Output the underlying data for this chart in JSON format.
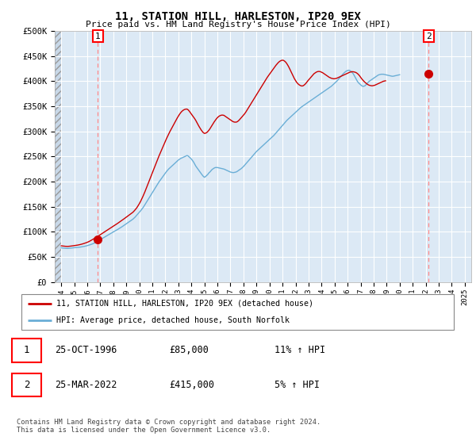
{
  "title": "11, STATION HILL, HARLESTON, IP20 9EX",
  "subtitle": "Price paid vs. HM Land Registry's House Price Index (HPI)",
  "ylim": [
    0,
    500000
  ],
  "yticks": [
    0,
    50000,
    100000,
    150000,
    200000,
    250000,
    300000,
    350000,
    400000,
    450000,
    500000
  ],
  "ytick_labels": [
    "£0",
    "£50K",
    "£100K",
    "£150K",
    "£200K",
    "£250K",
    "£300K",
    "£350K",
    "£400K",
    "£450K",
    "£500K"
  ],
  "background_color": "#ffffff",
  "plot_bg_color": "#dce9f5",
  "grid_color": "#ffffff",
  "transaction1": {
    "label": "1",
    "date": "25-OCT-1996",
    "price": 85000,
    "hpi_pct": "11%",
    "x_year": 1996.82
  },
  "transaction2": {
    "label": "2",
    "date": "25-MAR-2022",
    "price": 415000,
    "hpi_pct": "5%",
    "x_year": 2022.23
  },
  "hpi_line_color": "#6aaed6",
  "price_line_color": "#cc0000",
  "marker_color": "#cc0000",
  "vline_color": "#ff8888",
  "legend_label1": "11, STATION HILL, HARLESTON, IP20 9EX (detached house)",
  "legend_label2": "HPI: Average price, detached house, South Norfolk",
  "footer": "Contains HM Land Registry data © Crown copyright and database right 2024.\nThis data is licensed under the Open Government Licence v3.0.",
  "table_row1": [
    "1",
    "25-OCT-1996",
    "£85,000",
    "11% ↑ HPI"
  ],
  "table_row2": [
    "2",
    "25-MAR-2022",
    "£415,000",
    "5% ↑ HPI"
  ],
  "xtick_years": [
    1994,
    1995,
    1996,
    1997,
    1998,
    1999,
    2000,
    2001,
    2002,
    2003,
    2004,
    2005,
    2006,
    2007,
    2008,
    2009,
    2010,
    2011,
    2012,
    2013,
    2014,
    2015,
    2016,
    2017,
    2018,
    2019,
    2020,
    2021,
    2022,
    2023,
    2024,
    2025
  ],
  "hpi_monthly": [
    68000,
    67800,
    67500,
    67200,
    67000,
    66900,
    66800,
    67000,
    67200,
    67500,
    67800,
    68000,
    68200,
    68400,
    68600,
    68800,
    69000,
    69300,
    69600,
    70000,
    70400,
    70800,
    71300,
    71800,
    72400,
    73000,
    73700,
    74400,
    75200,
    76000,
    77000,
    78000,
    79200,
    80400,
    81700,
    83000,
    84300,
    85600,
    86900,
    88200,
    89500,
    90800,
    92100,
    93400,
    94700,
    96000,
    97200,
    98400,
    99600,
    100800,
    102000,
    103300,
    104600,
    105900,
    107200,
    108500,
    110000,
    111500,
    113000,
    114500,
    116000,
    117500,
    119000,
    120500,
    122000,
    123500,
    125000,
    127000,
    129000,
    131500,
    134000,
    136500,
    139000,
    141500,
    144000,
    147000,
    150000,
    153500,
    157000,
    160500,
    164000,
    167500,
    171000,
    174500,
    178000,
    181500,
    185000,
    188500,
    192000,
    195500,
    199000,
    202000,
    205000,
    208000,
    211000,
    214000,
    217000,
    220000,
    222500,
    225000,
    227000,
    229000,
    231000,
    233000,
    235000,
    237000,
    239000,
    241000,
    243000,
    244500,
    246000,
    247000,
    248000,
    249000,
    250000,
    251000,
    252000,
    251000,
    249000,
    247000,
    245000,
    242000,
    239000,
    235000,
    231000,
    228000,
    225000,
    222000,
    219000,
    216000,
    213000,
    210500,
    208500,
    210000,
    212000,
    214000,
    217000,
    219000,
    221500,
    224000,
    225500,
    227000,
    228000,
    228000,
    228000,
    227500,
    227000,
    226500,
    226000,
    225500,
    225000,
    224000,
    223000,
    222000,
    221000,
    220000,
    219000,
    218500,
    218000,
    218000,
    218500,
    219000,
    220000,
    221500,
    223000,
    224500,
    226000,
    228000,
    230000,
    232500,
    235000,
    237500,
    240000,
    242500,
    245000,
    247500,
    250000,
    252500,
    255000,
    257500,
    260000,
    262000,
    264000,
    266000,
    268000,
    270000,
    272000,
    274000,
    276000,
    278000,
    280000,
    282000,
    284000,
    286000,
    288000,
    290000,
    292000,
    294500,
    297000,
    299500,
    302000,
    304500,
    307000,
    309500,
    312000,
    314500,
    317000,
    319500,
    322000,
    324000,
    326000,
    328000,
    330000,
    332000,
    334000,
    336000,
    338000,
    340000,
    342000,
    344000,
    346000,
    348000,
    349500,
    351000,
    352500,
    354000,
    355500,
    357000,
    358500,
    360000,
    361500,
    363000,
    364500,
    366000,
    367500,
    369000,
    370500,
    372000,
    373500,
    375000,
    376500,
    378000,
    379500,
    381000,
    382500,
    384000,
    385500,
    387000,
    388500,
    390000,
    392000,
    394000,
    396000,
    398000,
    400000,
    402500,
    405000,
    407500,
    410000,
    412500,
    415000,
    417000,
    419000,
    420500,
    421500,
    422000,
    421500,
    420000,
    418000,
    415500,
    412000,
    408000,
    404000,
    400000,
    397000,
    395000,
    393000,
    391000,
    390000,
    390000,
    391000,
    393000,
    395500,
    398000,
    400000,
    401500,
    403000,
    404500,
    406000,
    407500,
    409000,
    410500,
    412000,
    413000,
    413500,
    414000,
    414000,
    414000,
    413500,
    413000,
    412500,
    412000,
    411500,
    411000,
    410500,
    410000,
    410000,
    410500,
    411000,
    411500,
    412000,
    412500,
    413000
  ],
  "price_monthly": [
    72000,
    71800,
    71500,
    71200,
    71000,
    70900,
    70800,
    71000,
    71200,
    71500,
    71800,
    72000,
    72300,
    72600,
    73000,
    73400,
    73800,
    74300,
    74800,
    75400,
    76000,
    76700,
    77400,
    78200,
    79000,
    80000,
    81000,
    82200,
    83400,
    84700,
    86000,
    87300,
    88600,
    90000,
    91400,
    92800,
    94200,
    95600,
    97000,
    98400,
    99800,
    101200,
    102600,
    104000,
    105400,
    106800,
    108200,
    109600,
    111000,
    112400,
    113800,
    115300,
    116800,
    118300,
    119800,
    121300,
    122800,
    124400,
    126000,
    127600,
    129200,
    130800,
    132400,
    134000,
    135600,
    137200,
    138800,
    141000,
    143500,
    146000,
    149000,
    152500,
    156000,
    160000,
    164500,
    169000,
    174000,
    179000,
    184500,
    190000,
    195500,
    201000,
    206500,
    212000,
    217500,
    223000,
    228500,
    234000,
    239500,
    245000,
    250500,
    255500,
    260500,
    265500,
    270500,
    275500,
    280500,
    285500,
    290000,
    294500,
    299000,
    303000,
    307000,
    311000,
    315000,
    319000,
    323000,
    327000,
    330500,
    334000,
    337000,
    339500,
    341500,
    343000,
    344000,
    344500,
    344500,
    343000,
    340500,
    337500,
    334500,
    331500,
    328500,
    325500,
    322000,
    318000,
    314000,
    310000,
    306500,
    303000,
    300000,
    297500,
    296000,
    296500,
    297500,
    299500,
    302000,
    305000,
    308500,
    312000,
    315500,
    319000,
    322000,
    325000,
    327500,
    329500,
    331000,
    332000,
    332500,
    332500,
    332000,
    330500,
    329000,
    327500,
    326000,
    324500,
    323000,
    321500,
    320000,
    319000,
    318500,
    318500,
    319000,
    320500,
    322500,
    325000,
    327500,
    330000,
    332500,
    335000,
    338000,
    341500,
    345000,
    348500,
    352000,
    355500,
    359000,
    362500,
    366000,
    369500,
    373000,
    376500,
    380000,
    383500,
    387000,
    390500,
    394000,
    397500,
    401000,
    404500,
    408000,
    411000,
    414000,
    417000,
    420000,
    423000,
    426000,
    429000,
    432000,
    434500,
    437000,
    439000,
    440500,
    441500,
    442000,
    441500,
    440000,
    438000,
    435000,
    431500,
    427500,
    423000,
    418500,
    414000,
    409500,
    405000,
    401500,
    398000,
    395500,
    393500,
    392000,
    391000,
    390500,
    391000,
    392500,
    394500,
    397000,
    400000,
    402500,
    405000,
    407500,
    410000,
    412500,
    415000,
    416500,
    418000,
    419000,
    419500,
    419500,
    419000,
    418000,
    417000,
    415500,
    414000,
    412500,
    411000,
    409500,
    408000,
    407000,
    406000,
    405500,
    405000,
    405000,
    405500,
    406000,
    407000,
    408000,
    409000,
    410000,
    411000,
    412000,
    413000,
    414000,
    415000,
    416000,
    417000,
    418000,
    418500,
    419000,
    419000,
    418500,
    418000,
    417000,
    415500,
    413500,
    411000,
    408000,
    405000,
    402500,
    400000,
    398000,
    396000,
    394500,
    393000,
    392000,
    391500,
    391000,
    391000,
    391500,
    392000,
    393000,
    394000,
    395000,
    396000,
    397000,
    398000,
    399000,
    400000,
    400500,
    401000
  ],
  "xlim_start": 1993.5,
  "xlim_end": 2025.5
}
